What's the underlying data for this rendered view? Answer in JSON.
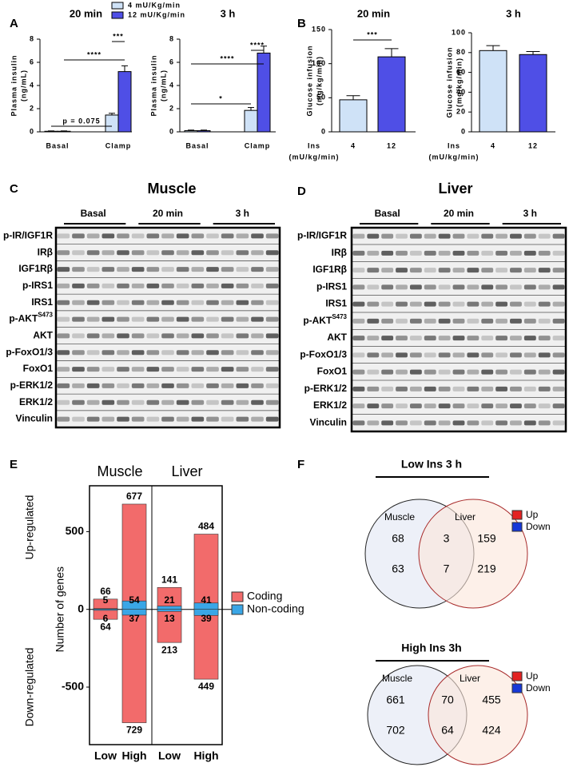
{
  "chart_data": [
    {
      "type": "bar",
      "panel": "A",
      "title": "20 min",
      "y_label": [
        "Plasma insulin",
        "(ng/mL)"
      ],
      "categories": [
        "Basal",
        "Clamp"
      ],
      "series": [
        {
          "name": "4 mU/Kg/min",
          "color": "#cfe2f7",
          "values": [
            0.05,
            1.45
          ],
          "errors": [
            0.03,
            0.15
          ]
        },
        {
          "name": "12 mU/Kg/min",
          "color": "#4f4fe6",
          "values": [
            0.05,
            5.2
          ],
          "errors": [
            0.03,
            0.5
          ]
        }
      ],
      "ylim": [
        0,
        8
      ],
      "yticks": [
        0,
        2,
        4,
        6,
        8
      ],
      "annotations": [
        "p = 0.075",
        "****",
        "***"
      ]
    },
    {
      "type": "bar",
      "title": "3 h",
      "y_label": [
        "Plasma insulin",
        "(ng/mL)"
      ],
      "categories": [
        "Basal",
        "Clamp"
      ],
      "series": [
        {
          "color": "#cfe2f7",
          "values": [
            0.1,
            1.85
          ],
          "errors": [
            0.05,
            0.25
          ]
        },
        {
          "color": "#4f4fe6",
          "values": [
            0.1,
            6.8
          ],
          "errors": [
            0.05,
            0.6
          ]
        }
      ],
      "ylim": [
        0,
        8
      ],
      "yticks": [
        0,
        2,
        4,
        6,
        8
      ],
      "annotations": [
        "*",
        "****",
        "****"
      ]
    },
    {
      "type": "bar",
      "panel": "B",
      "title": "20 min",
      "y_label": [
        "Glucose infusion",
        "(mg/kg/min)"
      ],
      "x_label": [
        "Ins",
        "(mU/kg/min)"
      ],
      "categories": [
        "4",
        "12"
      ],
      "series": [
        {
          "colors": [
            "#cfe2f7",
            "#4f4fe6"
          ],
          "values": [
            47,
            110
          ],
          "errors": [
            6,
            12
          ]
        }
      ],
      "ylim": [
        0,
        150
      ],
      "yticks": [
        0,
        50,
        100,
        150
      ],
      "annotations": [
        "***"
      ]
    },
    {
      "type": "bar",
      "title": "3 h",
      "y_label": [
        "Glucose infusion",
        "(mg/kg/min)"
      ],
      "x_label": [
        "Ins",
        "(mU/kg/min)"
      ],
      "categories": [
        "4",
        "12"
      ],
      "series": [
        {
          "colors": [
            "#cfe2f7",
            "#4f4fe6"
          ],
          "values": [
            82,
            78
          ],
          "errors": [
            5,
            3
          ]
        }
      ],
      "ylim": [
        0,
        100
      ],
      "yticks": [
        0,
        20,
        40,
        60,
        80,
        100
      ],
      "annotations": []
    },
    {
      "type": "diverging_bar",
      "panel": "E",
      "groups": [
        "Muscle",
        "Liver"
      ],
      "categories": [
        "Low",
        "High",
        "Low",
        "High"
      ],
      "y_label": "Number of genes",
      "side_labels": [
        "Up-regulated",
        "Down-regulated"
      ],
      "series": [
        {
          "name": "Coding",
          "color": "#f26b6b",
          "values": [
            66,
            677,
            141,
            484
          ],
          "down_values": [
            -64,
            -729,
            -213,
            -449
          ],
          "down_value_labels": [
            "64",
            "729",
            "213",
            "449"
          ]
        },
        {
          "name": "Non-coding",
          "color": "#3aa6e6",
          "values": [
            5,
            54,
            21,
            41
          ],
          "down_values": [
            -6,
            -37,
            -13,
            -39
          ],
          "down_value_labels": [
            "6",
            "37",
            "13",
            "39"
          ]
        }
      ],
      "ylim": [
        -870,
        795
      ],
      "yticks": [
        500,
        0,
        -500
      ]
    }
  ],
  "blots": [
    {
      "panel": "C",
      "title": "Muscle",
      "groups": [
        "Basal",
        "20 min",
        "3 h"
      ],
      "rows": [
        {
          "label": "p-IR/IGF1R"
        },
        {
          "label": "IRβ"
        },
        {
          "label": "IGF1Rβ"
        },
        {
          "label": "p-IRS1"
        },
        {
          "label": "IRS1"
        },
        {
          "label": "p-AKT",
          "sup": "S473"
        },
        {
          "label": "AKT"
        },
        {
          "label": "p-FoxO1/3"
        },
        {
          "label": "FoxO1"
        },
        {
          "label": "p-ERK1/2"
        },
        {
          "label": "ERK1/2"
        },
        {
          "label": "Vinculin"
        }
      ]
    },
    {
      "panel": "D",
      "title": "Liver",
      "groups": [
        "Basal",
        "20 min",
        "3 h"
      ],
      "rows": [
        {
          "label": "p-IR/IGF1R"
        },
        {
          "label": "IRβ"
        },
        {
          "label": "IGF1Rβ"
        },
        {
          "label": "p-IRS1"
        },
        {
          "label": "IRS1"
        },
        {
          "label": "p-AKT",
          "sup": "S473"
        },
        {
          "label": "AKT"
        },
        {
          "label": "p-FoxO1/3"
        },
        {
          "label": "FoxO1"
        },
        {
          "label": "p-ERK1/2"
        },
        {
          "label": "ERK1/2"
        },
        {
          "label": "Vinculin"
        }
      ]
    }
  ],
  "venn_diagrams": [
    {
      "panel": "F",
      "title": "Low Ins 3 h",
      "sets": [
        "Muscle",
        "Liver"
      ],
      "up": [
        68,
        3,
        159
      ],
      "down": [
        63,
        7,
        219
      ],
      "legend": [
        {
          "label": "Up",
          "color": "#e32222"
        },
        {
          "label": "Down",
          "color": "#1638d8"
        }
      ]
    },
    {
      "title": "High Ins 3h",
      "sets": [
        "Muscle",
        "Liver"
      ],
      "up": [
        661,
        70,
        455
      ],
      "down": [
        702,
        64,
        424
      ],
      "legend": [
        {
          "label": "Up",
          "color": "#e32222"
        },
        {
          "label": "Down",
          "color": "#1638d8"
        }
      ]
    }
  ]
}
